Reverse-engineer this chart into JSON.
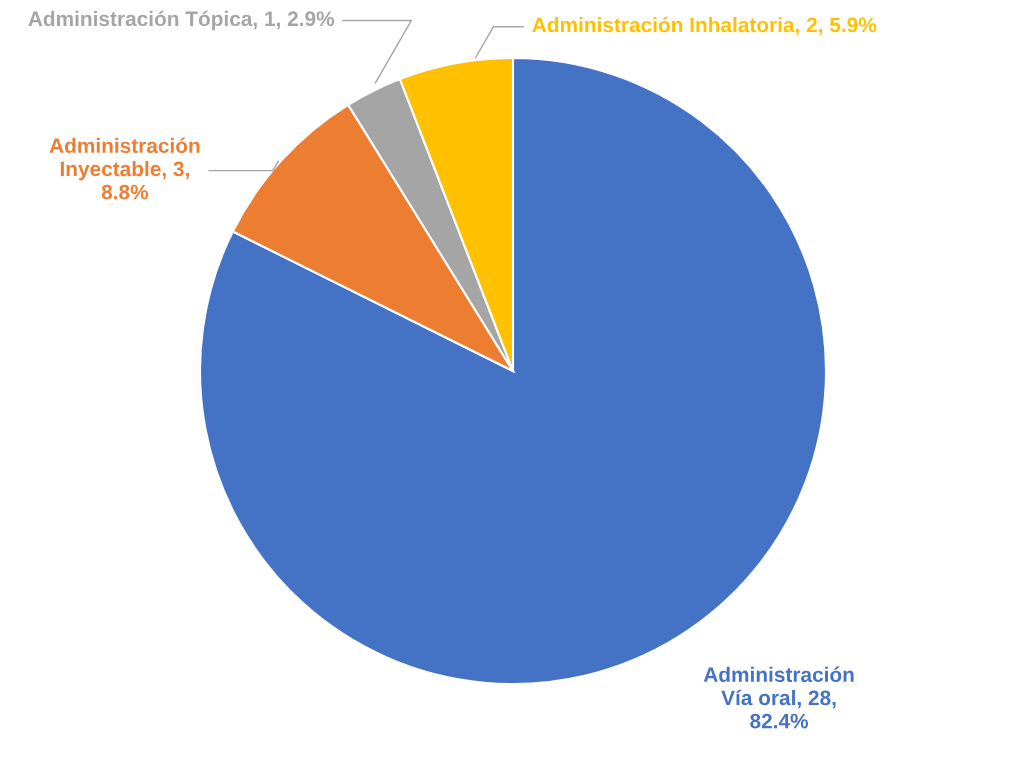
{
  "chart_data": {
    "type": "pie",
    "categories": [
      "Administración\nVía oral",
      "Administración\nInyectable",
      "Administración Tópica",
      "Administración Inhalatoria"
    ],
    "values": [
      28,
      3,
      1,
      2
    ],
    "colors": [
      "#4472c4",
      "#ed7d31",
      "#a5a5a5",
      "#ffc000"
    ],
    "value_labels": [
      "28,\n82.4%",
      "3,\n8.8%",
      "1, 2.9%",
      "2, 5.9%"
    ],
    "legend": false
  }
}
